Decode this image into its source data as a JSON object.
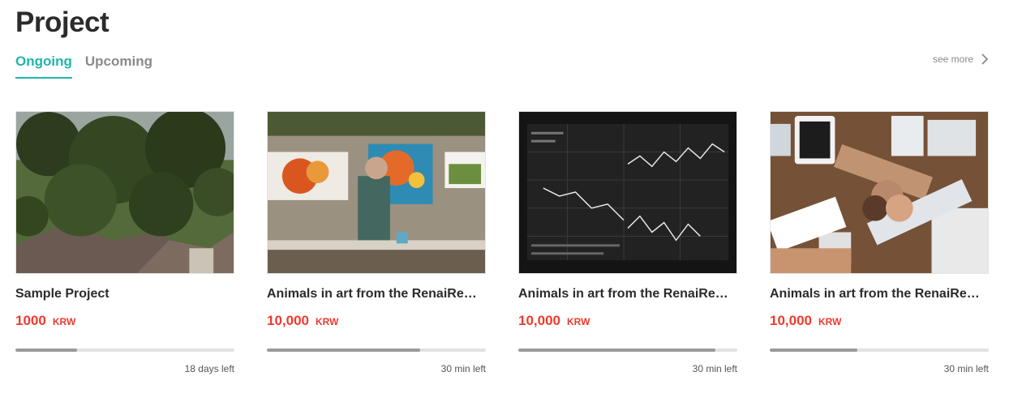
{
  "header": {
    "title": "Project"
  },
  "tabs": [
    {
      "label": "Ongoing",
      "active": true
    },
    {
      "label": "Upcoming",
      "active": false
    }
  ],
  "see_more": {
    "label": "see more",
    "icon": "chevron-right-icon"
  },
  "colors": {
    "accent": "#1fb5ac",
    "price": "#f03a2e",
    "progress_fill": "#9a9a9a",
    "progress_track": "#e2e2e2"
  },
  "projects": [
    {
      "title": "Sample Project",
      "amount": "1000",
      "unit": "KRW",
      "progress": 0.28,
      "time_left": "18 days left",
      "image": "tree-leaves-rooftop-photo"
    },
    {
      "title": "Animals in art from the RenaiRe…",
      "amount": "10,000",
      "unit": "KRW",
      "progress": 0.7,
      "time_left": "30 min left",
      "image": "artist-painting-outdoor-photo"
    },
    {
      "title": "Animals in art from the RenaiRe…",
      "amount": "10,000",
      "unit": "KRW",
      "progress": 0.9,
      "time_left": "30 min left",
      "image": "stock-market-screen-photo"
    },
    {
      "title": "Animals in art from the RenaiRe…",
      "amount": "10,000",
      "unit": "KRW",
      "progress": 0.4,
      "time_left": "30 min left",
      "image": "team-fist-bump-photo"
    }
  ]
}
